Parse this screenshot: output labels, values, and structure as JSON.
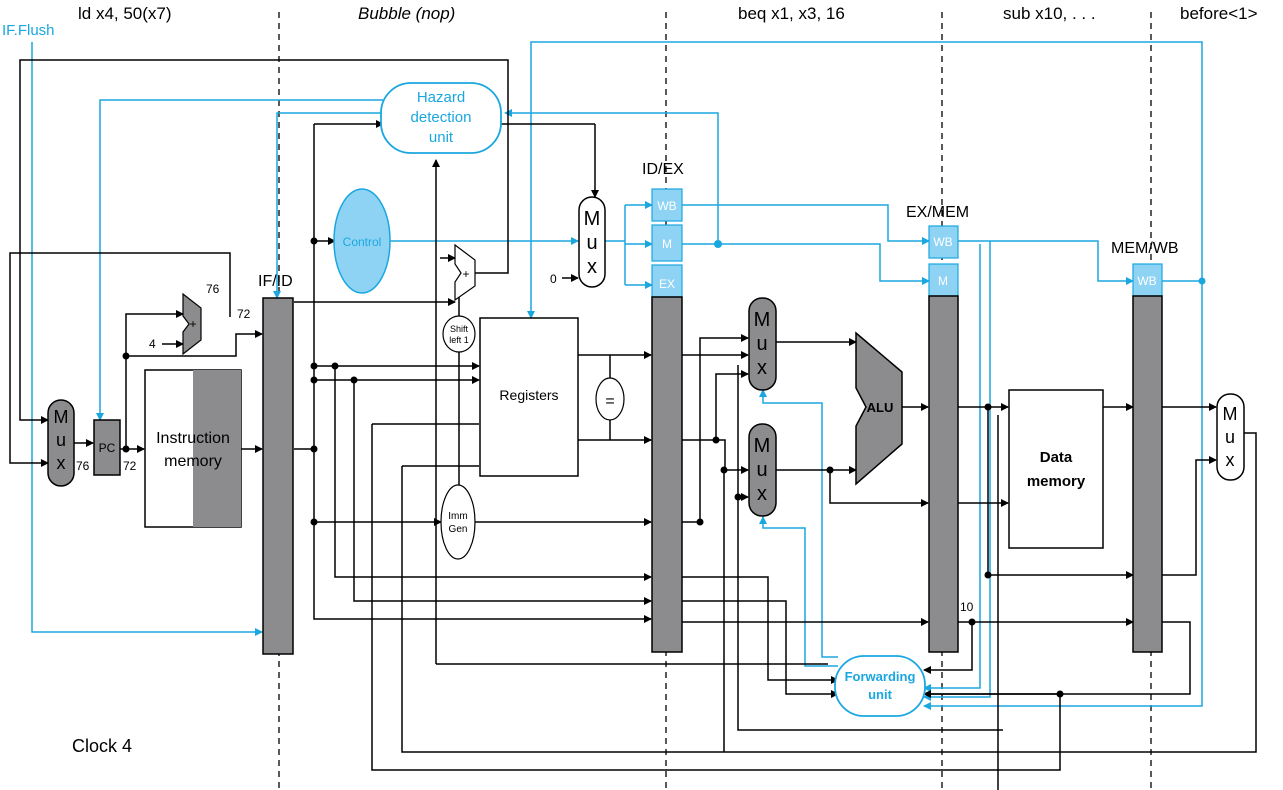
{
  "stage_labels": {
    "if": "ld x4, 50(x7)",
    "id": "Bubble (nop)",
    "ex": "beq x1, x3, 16",
    "mem": "sub x10, . . .",
    "wb": "before<1>"
  },
  "clock": "Clock 4",
  "if_flush": "IF.Flush",
  "units": {
    "hazard": [
      "Hazard",
      "detection",
      "unit"
    ],
    "control": "Control",
    "pc": "PC",
    "instr_mem": [
      "Instruction",
      "memory"
    ],
    "registers": "Registers",
    "equal": "=",
    "imm_gen": [
      "Imm",
      "Gen"
    ],
    "shift": [
      "Shift",
      "left 1"
    ],
    "alu": "ALU",
    "data_mem": [
      "Data",
      "memory"
    ],
    "forwarding": [
      "Forwarding",
      "unit"
    ],
    "adder": "+",
    "mux": [
      "M",
      "u",
      "x"
    ]
  },
  "registers_pipe": {
    "ifid": "IF/ID",
    "idex": "ID/EX",
    "exmem": "EX/MEM",
    "memwb": "MEM/WB"
  },
  "fields": {
    "wb": "WB",
    "m": "M",
    "ex": "EX"
  },
  "values": {
    "v76a": "76",
    "v72a": "72",
    "v76b": "76",
    "v72b": "72",
    "four": "4",
    "zero": "0",
    "ten": "10"
  },
  "colors": {
    "accent": "#1aa7e0",
    "field_fill": "#8fd3f4",
    "gray": "#8c8c8e"
  }
}
